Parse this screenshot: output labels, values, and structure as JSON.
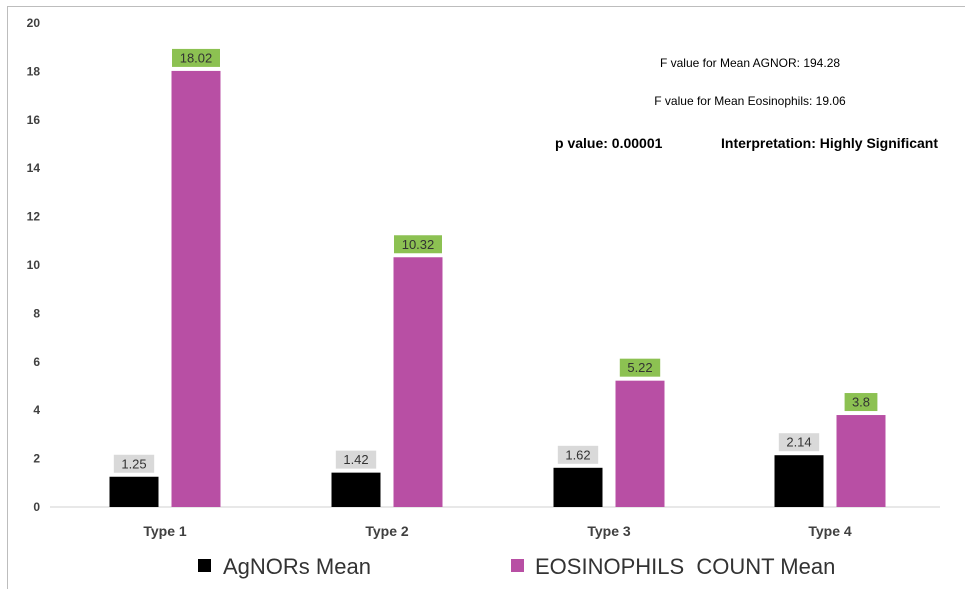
{
  "chart_data": {
    "type": "bar",
    "categories": [
      "Type 1",
      "Type 2",
      "Type 3",
      "Type 4"
    ],
    "series": [
      {
        "name": "AgNORs Mean",
        "values": [
          1.25,
          1.42,
          1.62,
          2.14
        ],
        "color": "#000000",
        "label_bg": "#d9d9d9"
      },
      {
        "name": "EOSINOPHILS  COUNT Mean",
        "values": [
          18.02,
          10.32,
          5.22,
          3.8
        ],
        "color": "#b84fa4",
        "label_bg": "#8cc152"
      }
    ],
    "data_labels": [
      [
        "1.25",
        "1.42",
        "1.62",
        "2.14"
      ],
      [
        "18.02",
        "10.32",
        "5.22",
        "3.8"
      ]
    ],
    "yticks": [
      "0",
      "2",
      "4",
      "6",
      "8",
      "10",
      "12",
      "14",
      "16",
      "18",
      "20"
    ],
    "ylim": [
      0,
      20
    ],
    "grid": false,
    "legend_position": "bottom",
    "annotations": {
      "f_agnor": "F value for Mean AGNOR: 194.28",
      "f_eos": "F value for Mean Eosinophils: 19.06",
      "p_value": "p value: 0.00001",
      "interpretation": "Interpretation: Highly Significant"
    }
  }
}
